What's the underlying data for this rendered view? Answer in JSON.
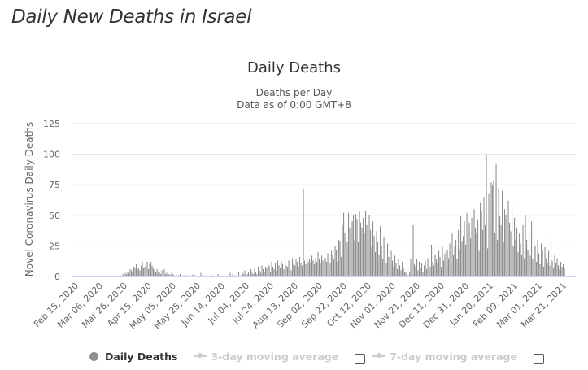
{
  "page": {
    "heading": "Daily New Deaths in Israel"
  },
  "chart_data": {
    "type": "bar",
    "title": "Daily Deaths",
    "subtitle_lines": [
      "Deaths per Day",
      "Data as of 0:00 GMT+8"
    ],
    "xlabel": "",
    "ylabel": "Novel Coronavirus Daily Deaths",
    "ylim": [
      0,
      125
    ],
    "yticks": [
      0,
      25,
      50,
      75,
      100,
      125
    ],
    "grid": true,
    "start_date": "Feb 15, 2020",
    "xtick_labels": [
      "Feb 15, 2020",
      "Mar 06, 2020",
      "Mar 26, 2020",
      "Apr 15, 2020",
      "May 05, 2020",
      "May 25, 2020",
      "Jun 14, 2020",
      "Jul 04, 2020",
      "Jul 24, 2020",
      "Aug 13, 2020",
      "Sep 02, 2020",
      "Sep 22, 2020",
      "Oct 12, 2020",
      "Nov 01, 2020",
      "Nov 21, 2020",
      "Dec 11, 2020",
      "Dec 31, 2020",
      "Jan 20, 2021",
      "Feb 09, 2021",
      "Mar 01, 2021",
      "Mar 21, 2021"
    ],
    "xtick_step_days": 20,
    "series": [
      {
        "name": "Daily Deaths",
        "color": "#8f8f8f",
        "values": [
          0,
          0,
          0,
          0,
          0,
          0,
          0,
          0,
          0,
          0,
          0,
          0,
          0,
          0,
          0,
          0,
          0,
          0,
          0,
          0,
          0,
          0,
          0,
          0,
          0,
          0,
          0,
          0,
          0,
          0,
          0,
          0,
          0,
          0,
          0,
          0,
          0,
          1,
          0,
          2,
          1,
          3,
          2,
          4,
          3,
          6,
          5,
          4,
          8,
          7,
          10,
          6,
          7,
          5,
          9,
          12,
          7,
          8,
          11,
          12,
          6,
          10,
          12,
          9,
          7,
          5,
          4,
          6,
          3,
          4,
          2,
          5,
          3,
          6,
          2,
          3,
          4,
          2,
          1,
          3,
          2,
          1,
          0,
          1,
          0,
          1,
          2,
          0,
          0,
          1,
          0,
          0,
          1,
          0,
          0,
          0,
          1,
          2,
          1,
          0,
          0,
          0,
          0,
          3,
          0,
          1,
          0,
          0,
          0,
          0,
          0,
          0,
          1,
          0,
          0,
          0,
          0,
          2,
          0,
          0,
          0,
          0,
          1,
          0,
          0,
          0,
          1,
          3,
          0,
          2,
          0,
          1,
          0,
          0,
          4,
          0,
          1,
          3,
          2,
          5,
          1,
          2,
          4,
          1,
          6,
          3,
          2,
          7,
          4,
          2,
          8,
          5,
          3,
          9,
          6,
          4,
          8,
          7,
          10,
          9,
          4,
          12,
          8,
          6,
          11,
          5,
          13,
          9,
          7,
          12,
          10,
          6,
          14,
          9,
          8,
          13,
          11,
          5,
          15,
          10,
          9,
          14,
          12,
          8,
          16,
          11,
          9,
          72,
          13,
          10,
          16,
          12,
          14,
          11,
          17,
          13,
          10,
          15,
          12,
          20,
          14,
          11,
          17,
          13,
          18,
          15,
          12,
          19,
          16,
          11,
          21,
          18,
          14,
          25,
          22,
          12,
          30,
          29,
          16,
          42,
          52,
          36,
          31,
          28,
          52,
          40,
          38,
          45,
          50,
          30,
          51,
          47,
          28,
          53,
          44,
          40,
          48,
          36,
          54,
          42,
          30,
          50,
          38,
          24,
          45,
          33,
          20,
          37,
          28,
          18,
          41,
          25,
          14,
          32,
          22,
          11,
          27,
          16,
          9,
          21,
          13,
          8,
          17,
          11,
          6,
          14,
          9,
          5,
          12,
          7,
          4,
          3,
          2,
          1,
          4,
          14,
          2,
          42,
          10,
          8,
          14,
          5,
          12,
          7,
          11,
          4,
          9,
          13,
          6,
          15,
          10,
          8,
          26,
          12,
          9,
          18,
          14,
          11,
          21,
          16,
          8,
          24,
          13,
          19,
          9,
          22,
          15,
          27,
          12,
          35,
          18,
          25,
          30,
          14,
          38,
          22,
          49,
          29,
          33,
          45,
          26,
          52,
          37,
          44,
          31,
          48,
          28,
          55,
          40,
          35,
          46,
          21,
          60,
          53,
          38,
          65,
          42,
          100,
          23,
          68,
          40,
          77,
          75,
          78,
          36,
          92,
          30,
          72,
          49,
          42,
          70,
          28,
          55,
          50,
          22,
          62,
          44,
          37,
          58,
          25,
          48,
          30,
          40,
          20,
          35,
          27,
          18,
          42,
          15,
          50,
          30,
          22,
          38,
          17,
          45,
          14,
          33,
          25,
          12,
          30,
          19,
          10,
          27,
          22,
          8,
          24,
          15,
          11,
          21,
          9,
          32,
          13,
          7,
          18,
          11,
          15,
          9,
          6,
          12,
          8,
          10,
          7
        ]
      }
    ],
    "legend": {
      "placement": "bottom",
      "items": [
        {
          "label": "Daily Deaths",
          "active": true
        },
        {
          "label": "3-day moving average",
          "active": false,
          "checked": false
        },
        {
          "label": "7-day moving average",
          "active": false,
          "checked": false
        }
      ]
    }
  }
}
